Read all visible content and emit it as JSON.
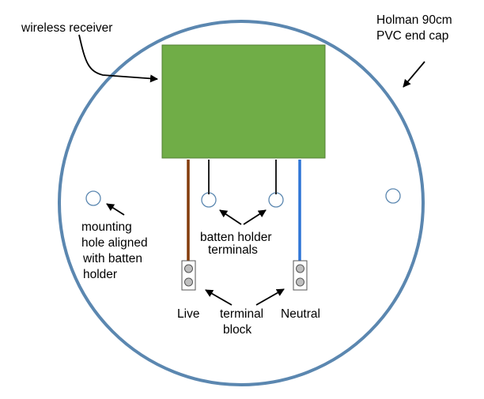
{
  "labels": {
    "wireless_receiver": "wireless receiver",
    "end_cap": [
      "Holman 90cm",
      "PVC end cap"
    ],
    "mounting_hole": [
      "mounting",
      "hole aligned",
      "with batten",
      "holder"
    ],
    "batten_terminals": [
      "batten holder",
      "terminals"
    ],
    "live": "Live",
    "neutral": "Neutral",
    "terminal_block": [
      "terminal",
      "block"
    ]
  },
  "colors": {
    "end_cap_outline": "#5b87b0",
    "receiver_fill": "#70ad47",
    "receiver_outline": "#507e32",
    "live_wire": "#843c0c",
    "neutral_wire": "#2e75d6",
    "terminal_wire": "#222222",
    "terminal_fill": "#bfbfbf",
    "hole_outline": "#5b87b0"
  }
}
